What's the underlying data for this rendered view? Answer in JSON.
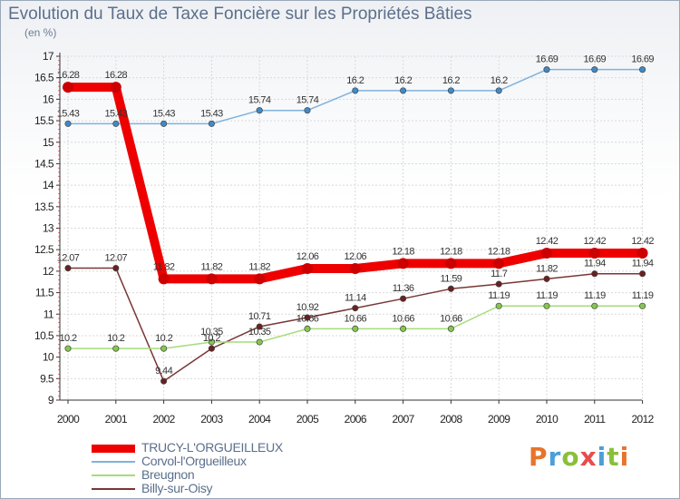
{
  "title": "Evolution du Taux de Taxe Foncière sur les Propriétés Bâties",
  "subtitle": "(en %)",
  "logo": {
    "text": "Proxiti",
    "colors": [
      "#e8742a",
      "#4c9ed9",
      "#8bbf3b",
      "#e84c4c",
      "#4c9ed9",
      "#8bbf3b",
      "#e8742a"
    ]
  },
  "chart_data": {
    "type": "line",
    "title": "Evolution du Taux de Taxe Foncière sur les Propriétés Bâties",
    "ylabel": "(en %)",
    "xlabel": "",
    "ylim": [
      9,
      17
    ],
    "yticks": [
      "9",
      "9.5",
      "10",
      "10.5",
      "11",
      "11.5",
      "12",
      "12.5",
      "13",
      "13.5",
      "14",
      "14.5",
      "15",
      "15.5",
      "16",
      "16.5",
      "17"
    ],
    "categories": [
      "2000",
      "2001",
      "2002",
      "2003",
      "2004",
      "2005",
      "2006",
      "2007",
      "2008",
      "2009",
      "2010",
      "2011",
      "2012"
    ],
    "grid": true,
    "series": [
      {
        "name": "TRUCY-L'ORGUEILLEUX",
        "color": "#ee0000",
        "point_color": "#cc0000",
        "values": [
          16.28,
          16.28,
          11.82,
          11.82,
          11.82,
          12.06,
          12.06,
          12.18,
          12.18,
          12.18,
          12.42,
          12.42,
          12.42
        ],
        "labels": [
          "16.28",
          "16.28",
          "11.82",
          "11.82",
          "11.82",
          "12.06",
          "12.06",
          "12.18",
          "12.18",
          "12.18",
          "12.42",
          "12.42",
          "12.42"
        ]
      },
      {
        "name": "Corvol-l'Orgueilleux",
        "color": "#7fb2dc",
        "point_color": "#3f8ac8",
        "values": [
          15.43,
          15.43,
          15.43,
          15.43,
          15.74,
          15.74,
          16.2,
          16.2,
          16.2,
          16.2,
          16.69,
          16.69,
          16.69
        ],
        "labels": [
          "15.43",
          "15.43",
          "15.43",
          "15.43",
          "15.74",
          "15.74",
          "16.2",
          "16.2",
          "16.2",
          "16.2",
          "16.69",
          "16.69",
          "16.69"
        ]
      },
      {
        "name": "Breugnon",
        "color": "#a6dc7a",
        "point_color": "#86c64e",
        "values": [
          10.2,
          10.2,
          10.2,
          10.35,
          10.35,
          10.66,
          10.66,
          10.66,
          10.66,
          11.19,
          11.19,
          11.19,
          11.19
        ],
        "labels": [
          "10.2",
          "10.2",
          "10.2",
          "10.35",
          "10.35",
          "10.66",
          "10.66",
          "10.66",
          "10.66",
          "11.19",
          "11.19",
          "11.19",
          "11.19"
        ]
      },
      {
        "name": "Billy-sur-Oisy",
        "color": "#7a3636",
        "point_color": "#6a2020",
        "values": [
          12.07,
          12.07,
          9.44,
          10.2,
          10.71,
          10.92,
          11.14,
          11.36,
          11.59,
          11.7,
          11.82,
          11.94,
          11.94
        ],
        "labels": [
          "12.07",
          "12.07",
          "9.44",
          "10.2",
          "10.71",
          "10.92",
          "11.14",
          "11.36",
          "11.59",
          "11.7",
          "11.82",
          "11.94",
          "11.94"
        ]
      }
    ]
  }
}
